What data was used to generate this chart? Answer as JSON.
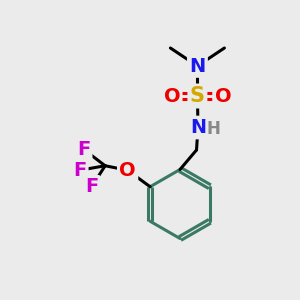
{
  "background_color": "#ebebeb",
  "bond_color": "#3a7a65",
  "bond_width": 2.2,
  "N_color": "#1a1aee",
  "S_color": "#d4a800",
  "O_color": "#ee0000",
  "F_color": "#cc00cc",
  "H_color": "#888888",
  "font_size": 14,
  "fig_size": [
    3.0,
    3.0
  ],
  "dpi": 100,
  "xlim": [
    0,
    10
  ],
  "ylim": [
    0,
    10
  ]
}
